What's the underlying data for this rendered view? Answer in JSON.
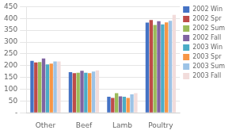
{
  "chart_data": {
    "type": "bar",
    "categories": [
      "Other",
      "Beef",
      "Lamb",
      "Poultry"
    ],
    "series": [
      {
        "name": "2002 Win",
        "color": "#4472C4",
        "values": [
          220,
          172,
          68,
          382
        ]
      },
      {
        "name": "2002 Spr",
        "color": "#BE4B48",
        "values": [
          213,
          168,
          63,
          393
        ]
      },
      {
        "name": "2002 Sum",
        "color": "#9BBB59",
        "values": [
          215,
          170,
          83,
          372
        ]
      },
      {
        "name": "2002 Fall",
        "color": "#8064A2",
        "values": [
          230,
          178,
          70,
          388
        ]
      },
      {
        "name": "2003 Win",
        "color": "#4BACC6",
        "values": [
          205,
          170,
          68,
          375
        ]
      },
      {
        "name": "2003 Spr",
        "color": "#F79646",
        "values": [
          208,
          168,
          63,
          383
        ]
      },
      {
        "name": "2003 Sum",
        "color": "#9DC3E6",
        "values": [
          218,
          175,
          78,
          390
        ]
      },
      {
        "name": "2003 Fall",
        "color": "#F2DCDB",
        "values": [
          218,
          180,
          83,
          415
        ]
      }
    ],
    "ylim": [
      0,
      450
    ],
    "yticks": [
      {
        "value": 0,
        "label": "-"
      },
      50,
      100,
      150,
      200,
      250,
      300,
      350,
      400,
      450
    ],
    "grid": true,
    "legend": "right"
  }
}
